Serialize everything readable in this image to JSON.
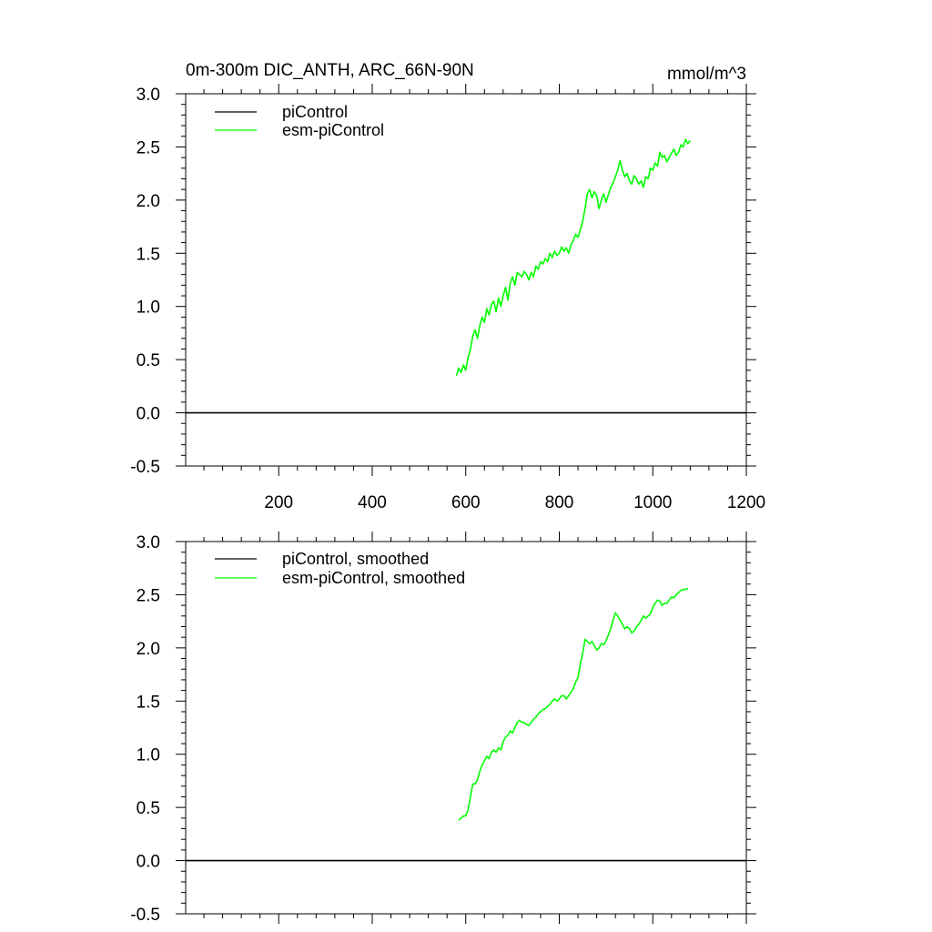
{
  "chart_data": [
    {
      "type": "line",
      "title": "0m-300m DIC_ANTH, ARC_66N-90N",
      "units": "mmol/m^3",
      "xlim": [
        1,
        1200
      ],
      "ylim": [
        -0.5,
        3.0
      ],
      "x_ticks": [
        200,
        400,
        600,
        800,
        1000,
        1200
      ],
      "x_tick_labels": [
        "200",
        "400",
        "600",
        "800",
        "1000",
        "1200"
      ],
      "y_ticks": [
        -0.5,
        0.0,
        0.5,
        1.0,
        1.5,
        2.0,
        2.5,
        3.0
      ],
      "y_tick_labels": [
        "-0.5",
        "0.0",
        "0.5",
        "1.0",
        "1.5",
        "2.0",
        "2.5",
        "3.0"
      ],
      "legend_position": "top-left",
      "series": [
        {
          "name": "piControl",
          "color": "#000000",
          "x": [
            1,
            1200
          ],
          "y": [
            0.0,
            0.0
          ]
        },
        {
          "name": "esm-piControl",
          "color": "#00ff00",
          "x": [
            580,
            585,
            590,
            595,
            600,
            605,
            610,
            615,
            620,
            625,
            630,
            635,
            640,
            645,
            650,
            655,
            660,
            665,
            670,
            675,
            680,
            685,
            690,
            695,
            700,
            705,
            710,
            715,
            720,
            725,
            730,
            735,
            740,
            745,
            750,
            755,
            760,
            765,
            770,
            775,
            780,
            785,
            790,
            795,
            800,
            805,
            810,
            815,
            820,
            825,
            830,
            835,
            840,
            845,
            850,
            855,
            860,
            865,
            870,
            875,
            880,
            885,
            890,
            895,
            900,
            905,
            910,
            915,
            920,
            925,
            930,
            935,
            940,
            945,
            950,
            955,
            960,
            965,
            970,
            975,
            980,
            985,
            990,
            995,
            1000,
            1005,
            1010,
            1015,
            1020,
            1025,
            1030,
            1035,
            1040,
            1045,
            1050,
            1055,
            1060,
            1065,
            1070,
            1075,
            1080
          ],
          "y": [
            0.35,
            0.42,
            0.38,
            0.45,
            0.4,
            0.52,
            0.6,
            0.72,
            0.78,
            0.7,
            0.82,
            0.9,
            0.85,
            0.98,
            0.92,
            1.02,
            1.05,
            0.95,
            1.08,
            1.0,
            1.1,
            1.18,
            1.06,
            1.22,
            1.28,
            1.2,
            1.32,
            1.3,
            1.28,
            1.33,
            1.3,
            1.25,
            1.32,
            1.28,
            1.38,
            1.35,
            1.42,
            1.4,
            1.45,
            1.42,
            1.5,
            1.46,
            1.52,
            1.48,
            1.5,
            1.56,
            1.52,
            1.55,
            1.5,
            1.58,
            1.62,
            1.68,
            1.65,
            1.72,
            1.8,
            1.92,
            2.06,
            2.1,
            2.02,
            2.08,
            2.04,
            1.92,
            2.0,
            2.06,
            1.98,
            2.05,
            2.12,
            2.16,
            2.22,
            2.28,
            2.37,
            2.28,
            2.22,
            2.25,
            2.18,
            2.15,
            2.23,
            2.2,
            2.15,
            2.18,
            2.12,
            2.22,
            2.2,
            2.3,
            2.28,
            2.35,
            2.32,
            2.45,
            2.4,
            2.42,
            2.36,
            2.4,
            2.44,
            2.48,
            2.42,
            2.45,
            2.52,
            2.5,
            2.57,
            2.53,
            2.56
          ]
        }
      ]
    },
    {
      "type": "line",
      "xlim": [
        1,
        1200
      ],
      "ylim": [
        -0.5,
        3.0
      ],
      "y_ticks": [
        -0.5,
        0.0,
        0.5,
        1.0,
        1.5,
        2.0,
        2.5,
        3.0
      ],
      "y_tick_labels": [
        "-0.5",
        "0.0",
        "0.5",
        "1.0",
        "1.5",
        "2.0",
        "2.5",
        "3.0"
      ],
      "legend_position": "top-left",
      "series": [
        {
          "name": "piControl, smoothed",
          "color": "#000000",
          "x": [
            1,
            1200
          ],
          "y": [
            0.0,
            0.0
          ]
        },
        {
          "name": "esm-piControl, smoothed",
          "color": "#00ff00",
          "x": [
            585,
            590,
            595,
            600,
            605,
            610,
            615,
            620,
            625,
            630,
            635,
            640,
            645,
            650,
            655,
            660,
            665,
            670,
            675,
            680,
            685,
            690,
            695,
            700,
            705,
            710,
            715,
            720,
            725,
            730,
            735,
            740,
            745,
            750,
            755,
            760,
            765,
            770,
            775,
            780,
            785,
            790,
            795,
            800,
            805,
            810,
            815,
            820,
            825,
            830,
            835,
            840,
            845,
            850,
            855,
            860,
            865,
            870,
            875,
            880,
            885,
            890,
            895,
            900,
            905,
            910,
            915,
            920,
            925,
            930,
            935,
            940,
            945,
            950,
            955,
            960,
            965,
            970,
            975,
            980,
            985,
            990,
            995,
            1000,
            1005,
            1010,
            1015,
            1020,
            1025,
            1030,
            1035,
            1040,
            1045,
            1050,
            1055,
            1060,
            1065,
            1070,
            1075
          ],
          "y": [
            0.38,
            0.4,
            0.42,
            0.42,
            0.48,
            0.6,
            0.72,
            0.72,
            0.76,
            0.84,
            0.9,
            0.94,
            0.98,
            0.96,
            1.02,
            1.04,
            1.02,
            1.06,
            1.04,
            1.12,
            1.16,
            1.18,
            1.22,
            1.2,
            1.25,
            1.3,
            1.32,
            1.3,
            1.3,
            1.28,
            1.27,
            1.3,
            1.33,
            1.35,
            1.38,
            1.4,
            1.42,
            1.43,
            1.45,
            1.47,
            1.5,
            1.52,
            1.5,
            1.52,
            1.55,
            1.55,
            1.52,
            1.55,
            1.58,
            1.62,
            1.68,
            1.72,
            1.85,
            1.95,
            2.08,
            2.06,
            2.04,
            2.06,
            2.02,
            1.98,
            2.0,
            2.04,
            2.03,
            2.07,
            2.12,
            2.18,
            2.26,
            2.33,
            2.3,
            2.26,
            2.22,
            2.18,
            2.2,
            2.18,
            2.14,
            2.16,
            2.2,
            2.22,
            2.26,
            2.3,
            2.28,
            2.3,
            2.32,
            2.38,
            2.42,
            2.45,
            2.44,
            2.4,
            2.42,
            2.42,
            2.45,
            2.48,
            2.47,
            2.5,
            2.52,
            2.54,
            2.55,
            2.55,
            2.56
          ]
        }
      ]
    }
  ]
}
